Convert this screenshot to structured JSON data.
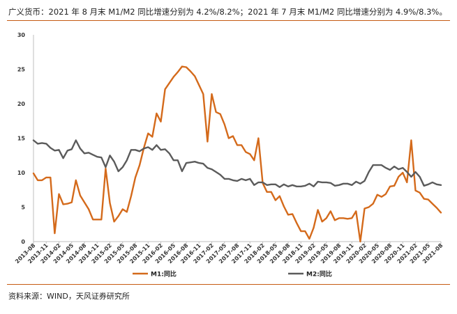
{
  "caption": "广义货币：2021 年 8 月末 M1/M2 同比增速分别为 4.2%/8.2%；2021 年 7 月末 M1/M2 同比增速分别为 4.9%/8.3%。",
  "source": "资料来源：WIND，天风证券研究所",
  "colors": {
    "m1": "#d46a1b",
    "m2": "#5b5b5b",
    "rule": "#c55a11",
    "axis": "#bfbfbf"
  },
  "chart_data": {
    "type": "line",
    "x_tick_labels": [
      "2013-08",
      "2013-11",
      "2014-02",
      "2014-05",
      "2014-08",
      "2014-11",
      "2015-02",
      "2015-05",
      "2015-08",
      "2015-11",
      "2016-02",
      "2016-05",
      "2016-08",
      "2016-11",
      "2017-02",
      "2017-05",
      "2017-08",
      "2017-11",
      "2018-02",
      "2018-05",
      "2018-08",
      "2018-11",
      "2019-02",
      "2019-05",
      "2019-08",
      "2019-11",
      "2020-02",
      "2020-05",
      "2020-08",
      "2020-11",
      "2021-02",
      "2021-05",
      "2021-08"
    ],
    "x_start": "2013-08",
    "ylim": [
      0,
      30
    ],
    "yticks": [
      0,
      5,
      10,
      15,
      20,
      25,
      30
    ],
    "legend_position": "bottom",
    "series": [
      {
        "name": "M1:同比",
        "color": "#d46a1b",
        "values": [
          9.9,
          8.9,
          8.9,
          9.3,
          9.3,
          1.2,
          6.9,
          5.4,
          5.5,
          5.7,
          8.9,
          6.7,
          5.7,
          4.7,
          3.2,
          3.2,
          3.2,
          10.6,
          5.6,
          2.9,
          3.7,
          4.7,
          4.3,
          6.6,
          9.3,
          11.1,
          13.6,
          15.7,
          15.2,
          18.6,
          17.4,
          22.1,
          23.0,
          23.9,
          24.6,
          25.4,
          25.3,
          24.7,
          24.0,
          22.7,
          21.4,
          14.5,
          21.4,
          18.8,
          18.5,
          17.0,
          15.0,
          15.3,
          14.0,
          14.0,
          13.0,
          12.7,
          11.8,
          15.0,
          8.5,
          7.2,
          7.2,
          6.0,
          6.6,
          5.1,
          3.9,
          4.0,
          2.7,
          1.5,
          1.5,
          0.4,
          2.0,
          4.6,
          2.9,
          3.4,
          4.4,
          3.1,
          3.4,
          3.4,
          3.3,
          3.4,
          4.4,
          0.0,
          4.8,
          5.0,
          5.5,
          6.8,
          6.5,
          6.9,
          8.0,
          8.1,
          9.4,
          10.0,
          8.6,
          14.7,
          7.4,
          7.1,
          6.2,
          6.1,
          5.5,
          4.9,
          4.2
        ]
      },
      {
        "name": "M2:同比",
        "color": "#5b5b5b",
        "values": [
          14.7,
          14.2,
          14.3,
          14.2,
          13.6,
          13.2,
          13.3,
          12.1,
          13.2,
          13.4,
          14.7,
          13.5,
          12.8,
          12.9,
          12.6,
          12.3,
          12.2,
          10.8,
          12.5,
          11.6,
          10.2,
          10.8,
          11.8,
          13.3,
          13.3,
          13.1,
          13.5,
          13.7,
          13.3,
          14.0,
          13.3,
          13.4,
          12.8,
          11.8,
          11.8,
          10.2,
          11.4,
          11.5,
          11.6,
          11.4,
          11.3,
          10.7,
          10.5,
          10.1,
          9.7,
          9.1,
          9.1,
          8.9,
          8.8,
          9.1,
          8.9,
          9.1,
          8.2,
          8.6,
          8.6,
          8.2,
          8.3,
          8.3,
          7.9,
          8.3,
          8.0,
          8.2,
          8.0,
          8.0,
          8.1,
          8.4,
          8.0,
          8.7,
          8.6,
          8.6,
          8.5,
          8.1,
          8.2,
          8.4,
          8.4,
          8.2,
          8.7,
          8.4,
          8.8,
          10.1,
          11.1,
          11.1,
          11.1,
          10.7,
          10.4,
          10.9,
          10.5,
          10.7,
          10.1,
          9.4,
          10.1,
          9.4,
          8.1,
          8.3,
          8.6,
          8.3,
          8.2
        ]
      }
    ]
  }
}
